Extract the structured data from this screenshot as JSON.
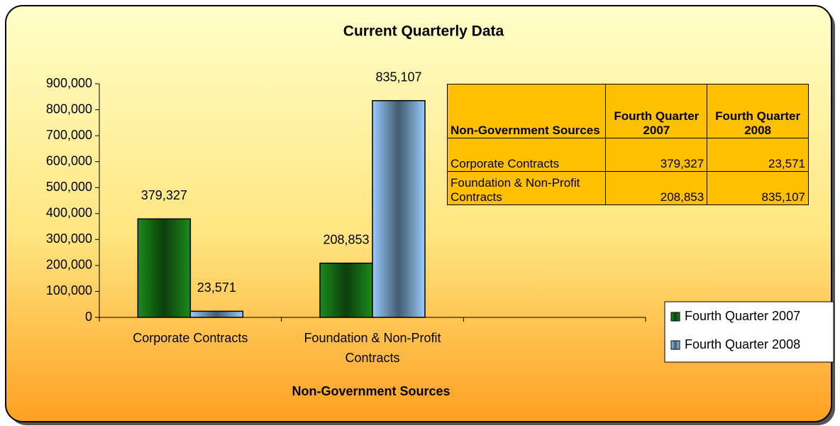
{
  "chart_data": {
    "type": "bar",
    "title": "Current Quarterly Data",
    "x_label": "Non-Government Sources",
    "categories": [
      "Corporate Contracts",
      "Foundation & Non-Profit Contracts",
      null
    ],
    "series": [
      {
        "name": "Fourth Quarter 2007",
        "color": "#1a8c1a",
        "values": [
          379327,
          208853,
          null
        ],
        "value_labels": [
          "379,327",
          "208,853",
          null
        ]
      },
      {
        "name": "Fourth Quarter 2008",
        "color": "#99ccff",
        "values": [
          23571,
          835107,
          null
        ],
        "value_labels": [
          "23,571",
          "835,107",
          null
        ]
      }
    ],
    "ylim": [
      0,
      900000
    ],
    "yticks": [
      {
        "value": 0,
        "label": "0"
      },
      {
        "value": 100000,
        "label": "100,000"
      },
      {
        "value": 200000,
        "label": "200,000"
      },
      {
        "value": 300000,
        "label": "300,000"
      },
      {
        "value": 400000,
        "label": "400,000"
      },
      {
        "value": 500000,
        "label": "500,000"
      },
      {
        "value": 600000,
        "label": "600,000"
      },
      {
        "value": 700000,
        "label": "700,000"
      },
      {
        "value": 800000,
        "label": "800,000"
      },
      {
        "value": 900000,
        "label": "900,000"
      }
    ],
    "grid": false,
    "legend": "right"
  },
  "table": {
    "header": [
      "Non-Government Sources",
      "Fourth Quarter 2007",
      "Fourth Quarter 2008"
    ],
    "rows": [
      [
        "Corporate Contracts",
        "379,327",
        "23,571"
      ],
      [
        "Foundation & Non-Profit Contracts",
        "208,853",
        "835,107"
      ]
    ]
  }
}
